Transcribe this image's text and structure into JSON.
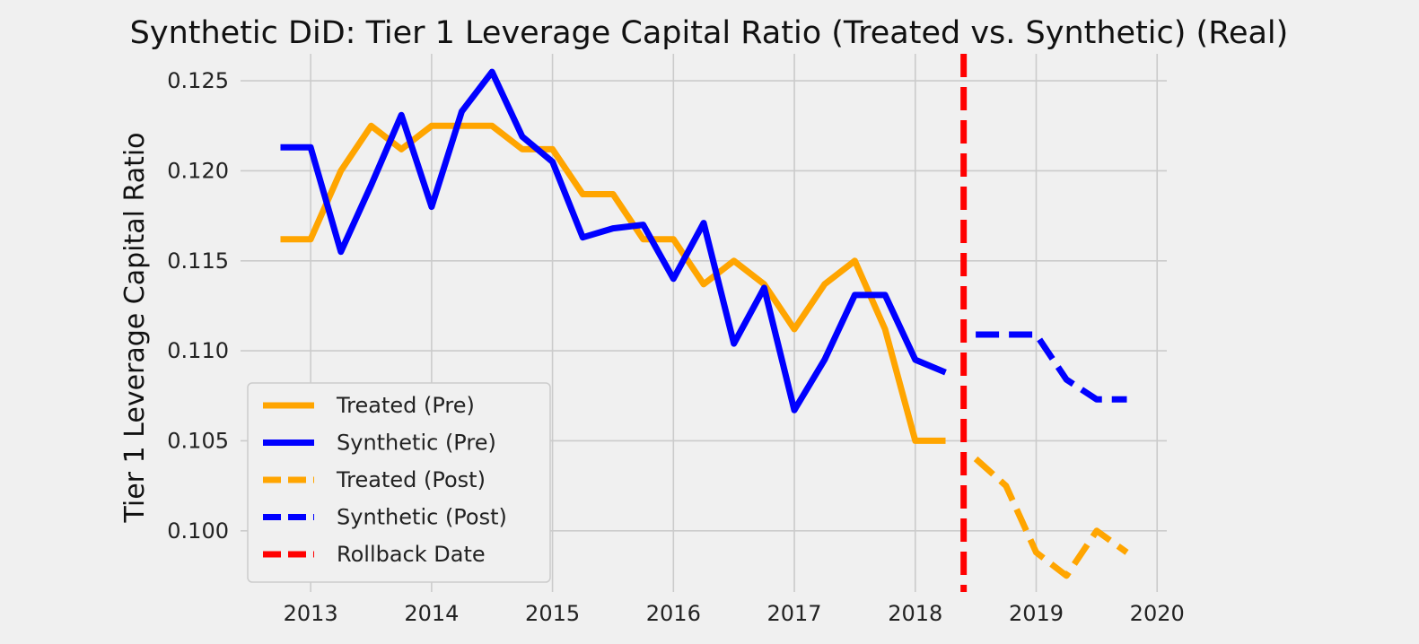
{
  "chart_data": {
    "type": "line",
    "title": "Synthetic DiD: Tier 1 Leverage Capital Ratio (Treated vs. Synthetic) (Real)",
    "xlabel": "",
    "ylabel": "Tier 1 Leverage Capital Ratio",
    "xlim": [
      2012.42,
      2020.08
    ],
    "ylim": [
      0.0966,
      0.1265
    ],
    "x_ticks": [
      2013,
      2014,
      2015,
      2016,
      2017,
      2018,
      2019,
      2020
    ],
    "x_tick_labels": [
      "2013",
      "2014",
      "2015",
      "2016",
      "2017",
      "2018",
      "2019",
      "2020"
    ],
    "y_ticks": [
      0.1,
      0.105,
      0.11,
      0.115,
      0.12,
      0.125
    ],
    "y_tick_labels": [
      "0.100",
      "0.105",
      "0.110",
      "0.115",
      "0.120",
      "0.125"
    ],
    "grid": true,
    "legend_position": "lower-left",
    "rollback_date": 2018.4,
    "series": [
      {
        "name": "Treated (Pre)",
        "color": "#FFA500",
        "style": "solid",
        "x": [
          2012.75,
          2013.0,
          2013.25,
          2013.5,
          2013.75,
          2014.0,
          2014.25,
          2014.5,
          2014.75,
          2015.0,
          2015.25,
          2015.5,
          2015.75,
          2016.0,
          2016.25,
          2016.5,
          2016.75,
          2017.0,
          2017.25,
          2017.5,
          2017.75,
          2018.0,
          2018.25
        ],
        "y": [
          0.1162,
          0.1162,
          0.12,
          0.1225,
          0.1212,
          0.1225,
          0.1225,
          0.1225,
          0.1212,
          0.1212,
          0.1187,
          0.1187,
          0.1162,
          0.1162,
          0.1137,
          0.115,
          0.1137,
          0.1112,
          0.1137,
          0.115,
          0.1112,
          0.105,
          0.105
        ]
      },
      {
        "name": "Synthetic (Pre)",
        "color": "#0000FF",
        "style": "solid",
        "x": [
          2012.75,
          2013.0,
          2013.25,
          2013.5,
          2013.75,
          2014.0,
          2014.25,
          2014.5,
          2014.75,
          2015.0,
          2015.25,
          2015.5,
          2015.75,
          2016.0,
          2016.25,
          2016.5,
          2016.75,
          2017.0,
          2017.25,
          2017.5,
          2017.75,
          2018.0,
          2018.25
        ],
        "y": [
          0.1213,
          0.1213,
          0.1155,
          0.1192,
          0.1231,
          0.118,
          0.1233,
          0.1255,
          0.1219,
          0.1205,
          0.1163,
          0.1168,
          0.117,
          0.114,
          0.1171,
          0.1104,
          0.1135,
          0.1067,
          0.1095,
          0.1131,
          0.1131,
          0.1095,
          0.1088
        ]
      },
      {
        "name": "Treated (Post)",
        "color": "#FFA500",
        "style": "dashed",
        "x": [
          2018.5,
          2018.75,
          2019.0,
          2019.25,
          2019.5,
          2019.75
        ],
        "y": [
          0.104,
          0.1025,
          0.0988,
          0.0975,
          0.1,
          0.0988
        ]
      },
      {
        "name": "Synthetic (Post)",
        "color": "#0000FF",
        "style": "dashed",
        "x": [
          2018.5,
          2018.75,
          2019.0,
          2019.25,
          2019.5,
          2019.75
        ],
        "y": [
          0.1109,
          0.1109,
          0.1109,
          0.1084,
          0.1073,
          0.1073
        ]
      }
    ],
    "legend": [
      {
        "label": "Treated (Pre)",
        "color": "#FFA500",
        "style": "solid"
      },
      {
        "label": "Synthetic (Pre)",
        "color": "#0000FF",
        "style": "solid"
      },
      {
        "label": "Treated (Post)",
        "color": "#FFA500",
        "style": "dashed"
      },
      {
        "label": "Synthetic (Post)",
        "color": "#0000FF",
        "style": "dashed"
      },
      {
        "label": "Rollback Date",
        "color": "#FF0000",
        "style": "dashed"
      }
    ]
  }
}
